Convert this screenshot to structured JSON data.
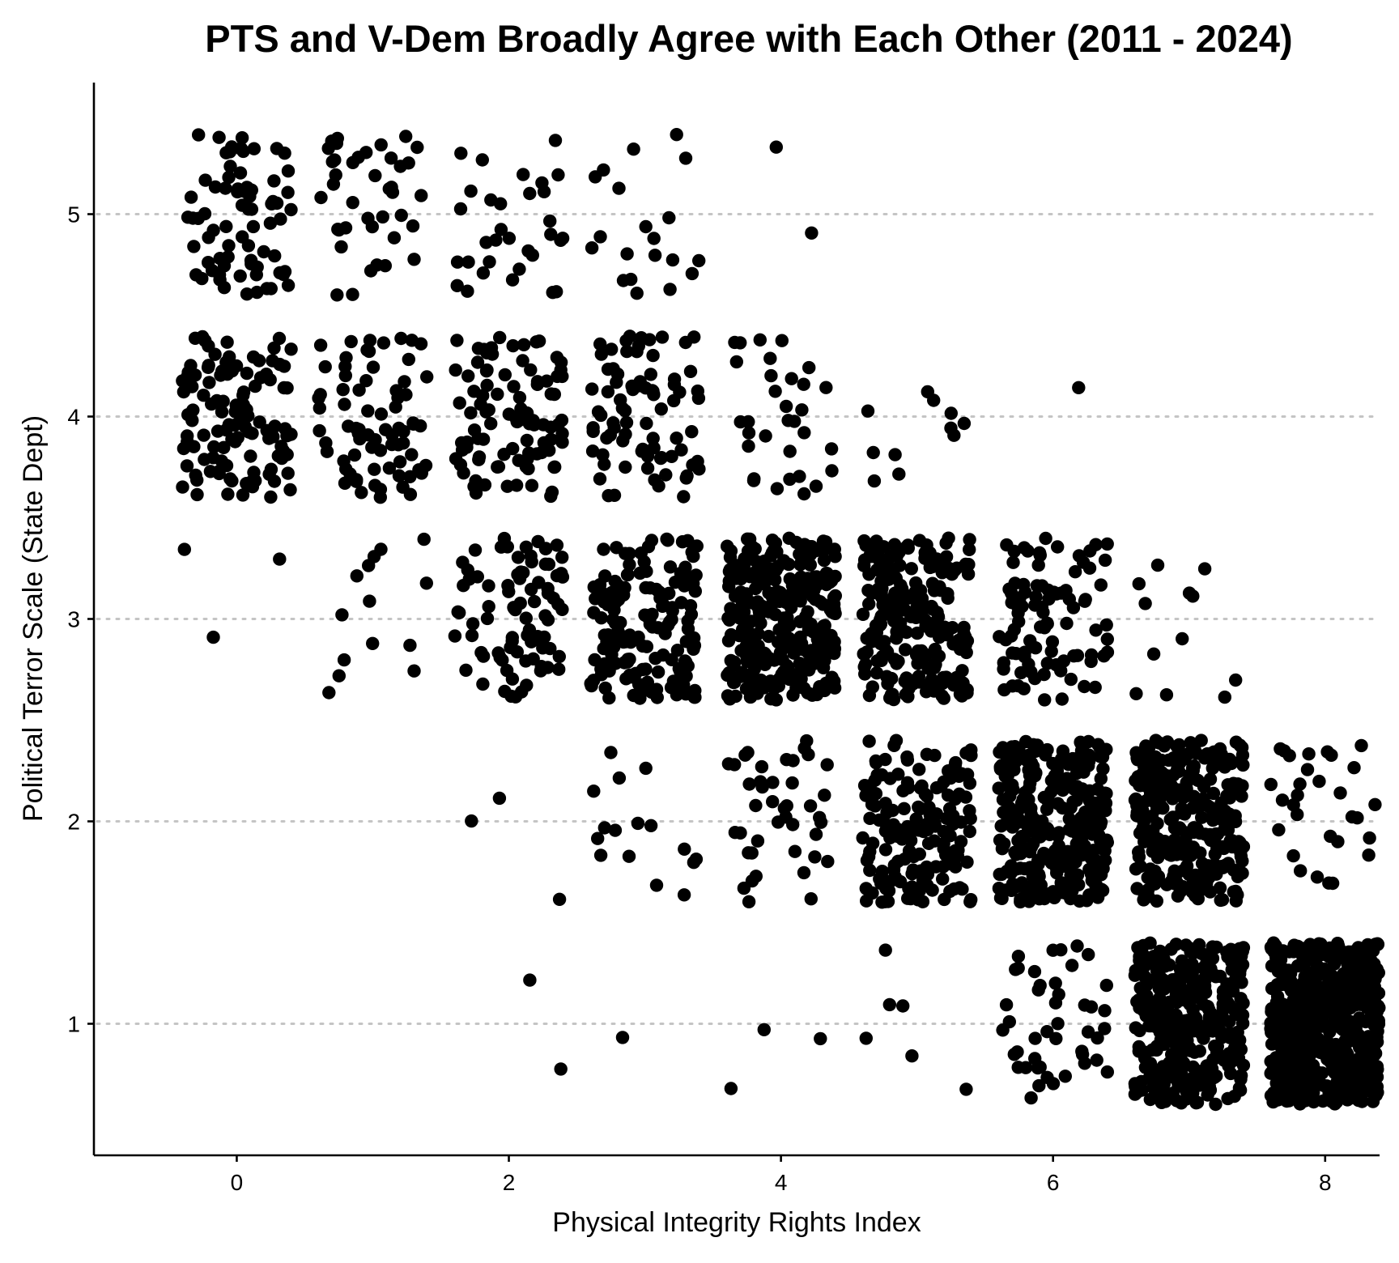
{
  "chart_data": {
    "type": "scatter",
    "title": "PTS and V-Dem Broadly Agree with Each Other (2011 - 2024)",
    "xlabel": "Physical Integrity Rights Index",
    "ylabel": "Political Terror Scale (State Dept)",
    "xlim": [
      -1.05,
      8.4
    ],
    "ylim": [
      0.35,
      5.65
    ],
    "x_ticks": [
      0,
      2,
      4,
      6,
      8
    ],
    "y_ticks": [
      1,
      2,
      3,
      4,
      5
    ],
    "x_tick_labels": [
      "0",
      "2",
      "4",
      "6",
      "8"
    ],
    "y_tick_labels": [
      "1",
      "2",
      "3",
      "4",
      "5"
    ],
    "grid": "horizontal dotted at y ticks",
    "legend": "none",
    "point_color": "#000000",
    "jitter": {
      "x": 0.4,
      "y": 0.4
    },
    "clusters": [
      {
        "pts": 5,
        "x_center": 0,
        "n": 75
      },
      {
        "pts": 5,
        "x_center": 1,
        "n": 40
      },
      {
        "pts": 5,
        "x_center": 2,
        "n": 32
      },
      {
        "pts": 5,
        "x_center": 3,
        "n": 20
      },
      {
        "pts": 5,
        "x_center": 4,
        "n": 2
      },
      {
        "pts": 4,
        "x_center": 0,
        "n": 115
      },
      {
        "pts": 4,
        "x_center": 1,
        "n": 75
      },
      {
        "pts": 4,
        "x_center": 2,
        "n": 95
      },
      {
        "pts": 4,
        "x_center": 3,
        "n": 80
      },
      {
        "pts": 4,
        "x_center": 4,
        "n": 32
      },
      {
        "pts": 4,
        "x_center": 5,
        "n": 11
      },
      {
        "pts": 4,
        "x_center": 6,
        "n": 1
      },
      {
        "pts": 3,
        "x_center": 0,
        "n": 3
      },
      {
        "pts": 3,
        "x_center": 1,
        "n": 14
      },
      {
        "pts": 3,
        "x_center": 2,
        "n": 85
      },
      {
        "pts": 3,
        "x_center": 3,
        "n": 160
      },
      {
        "pts": 3,
        "x_center": 4,
        "n": 290
      },
      {
        "pts": 3,
        "x_center": 5,
        "n": 220
      },
      {
        "pts": 3,
        "x_center": 6,
        "n": 95
      },
      {
        "pts": 3,
        "x_center": 7,
        "n": 12
      },
      {
        "pts": 2,
        "x_center": 2,
        "n": 3
      },
      {
        "pts": 2,
        "x_center": 3,
        "n": 16
      },
      {
        "pts": 2,
        "x_center": 4,
        "n": 42
      },
      {
        "pts": 2,
        "x_center": 5,
        "n": 165
      },
      {
        "pts": 2,
        "x_center": 6,
        "n": 300
      },
      {
        "pts": 2,
        "x_center": 7,
        "n": 290
      },
      {
        "pts": 2,
        "x_center": 8,
        "n": 30
      },
      {
        "pts": 1,
        "x_center": 2,
        "n": 2
      },
      {
        "pts": 1,
        "x_center": 3,
        "n": 1
      },
      {
        "pts": 1,
        "x_center": 4,
        "n": 3
      },
      {
        "pts": 1,
        "x_center": 5,
        "n": 6
      },
      {
        "pts": 1,
        "x_center": 6,
        "n": 45
      },
      {
        "pts": 1,
        "x_center": 7,
        "n": 330
      },
      {
        "pts": 1,
        "x_center": 8,
        "n": 560
      }
    ]
  }
}
